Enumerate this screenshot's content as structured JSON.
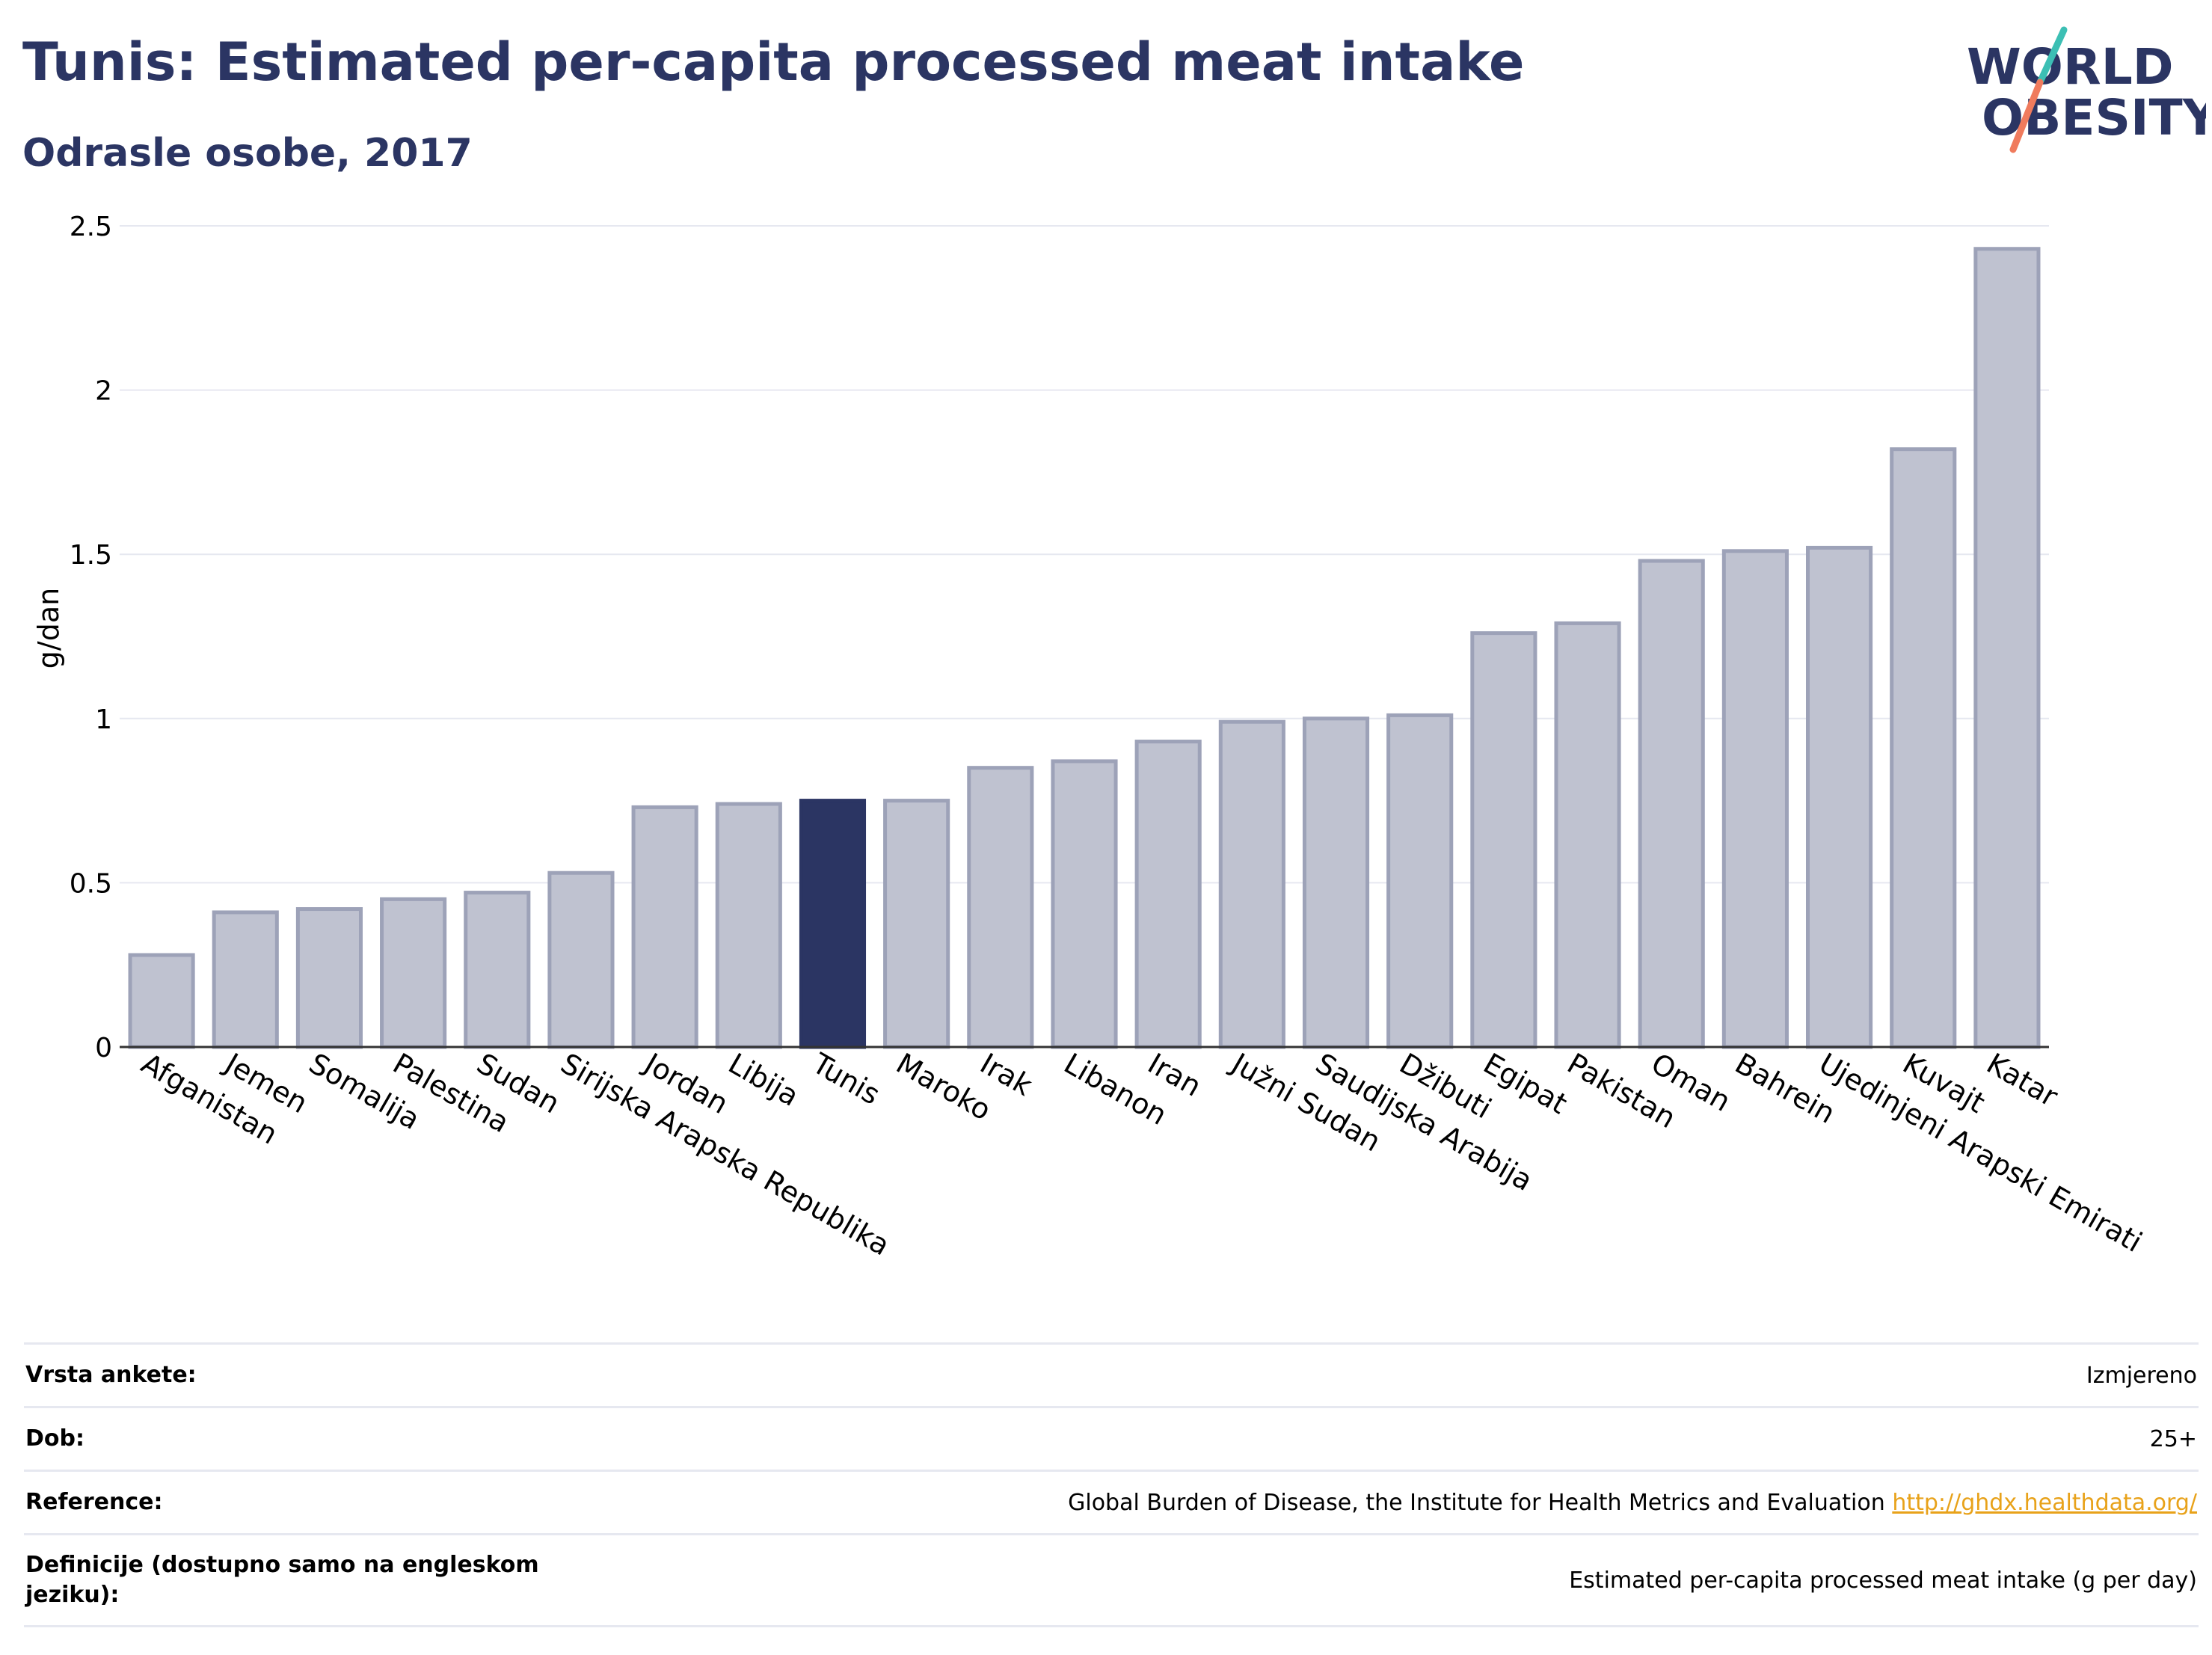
{
  "header": {
    "title": "Tunis: Estimated per-capita processed meat intake",
    "subtitle": "Odrasle osobe, 2017"
  },
  "logo": {
    "line1": "WORLD",
    "line2": "OBESITY",
    "text_color": "#2b3563",
    "slash_colors": [
      "#3cbfb4",
      "#f07b5d"
    ]
  },
  "colors": {
    "bar_fill": "#bfc2d0",
    "bar_stroke": "#9da2b8",
    "highlight": "#2b3563",
    "grid": "#e6e8f0",
    "link": "#e8a21a"
  },
  "chart_data": {
    "type": "bar",
    "title": "Tunis: Estimated per-capita processed meat intake",
    "subtitle": "Odrasle osobe, 2017",
    "xlabel": "",
    "ylabel": "g/dan",
    "ylim": [
      0,
      2.5
    ],
    "yticks": [
      0,
      0.5,
      1,
      1.5,
      2,
      2.5
    ],
    "ytick_labels": [
      "0",
      "0.5",
      "1",
      "1.5",
      "2",
      "2.5"
    ],
    "grid": true,
    "highlight": "Tunis",
    "categories": [
      "Afganistan",
      "Jemen",
      "Somalija",
      "Palestina",
      "Sudan",
      "Sirijska Arapska Republika",
      "Jordan",
      "Libija",
      "Tunis",
      "Maroko",
      "Irak",
      "Libanon",
      "Iran",
      "Južni Sudan",
      "Saudijska Arabija",
      "Džibuti",
      "Egipat",
      "Pakistan",
      "Oman",
      "Bahrein",
      "Ujedinjeni Arapski Emirati",
      "Kuvajt",
      "Katar"
    ],
    "values": [
      0.28,
      0.41,
      0.42,
      0.45,
      0.47,
      0.53,
      0.73,
      0.74,
      0.75,
      0.75,
      0.85,
      0.87,
      0.93,
      0.99,
      1.0,
      1.01,
      1.26,
      1.29,
      1.48,
      1.51,
      1.52,
      1.82,
      2.43
    ]
  },
  "table": {
    "rows": [
      {
        "label": "Vrsta ankete:",
        "value": "Izmjereno",
        "link": ""
      },
      {
        "label": "Dob:",
        "value": "25+",
        "link": ""
      },
      {
        "label": "Reference:",
        "value": "Global Burden of Disease, the Institute for Health Metrics and Evaluation",
        "link": "http://ghdx.healthdata.org/"
      },
      {
        "label": "Definicije (dostupno samo na engleskom jeziku):",
        "value": "Estimated per-capita processed meat intake (g per day)",
        "link": ""
      }
    ]
  }
}
